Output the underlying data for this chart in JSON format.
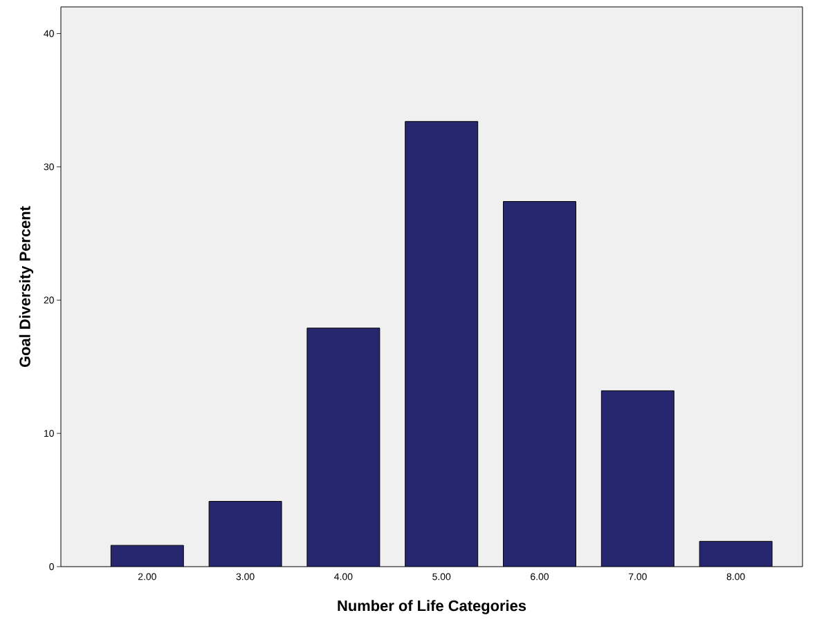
{
  "chart_data": {
    "type": "bar",
    "xlabel": "Number of Life Categories",
    "ylabel": "Goal Diversity Percent",
    "categories": [
      "2.00",
      "3.00",
      "4.00",
      "5.00",
      "6.00",
      "7.00",
      "8.00"
    ],
    "values": [
      1.6,
      4.9,
      17.9,
      33.4,
      27.4,
      13.2,
      1.9
    ],
    "color": "#26276e",
    "ylim": [
      0,
      42
    ],
    "yticks": [
      0,
      10,
      20,
      30,
      40
    ],
    "grid": false
  }
}
